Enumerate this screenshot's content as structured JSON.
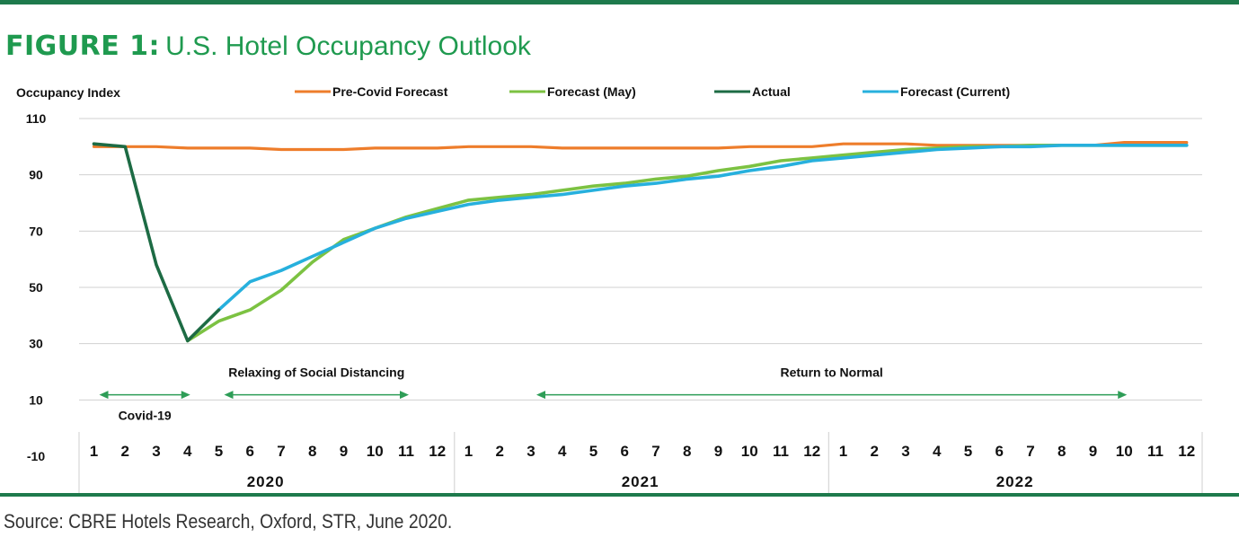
{
  "figure": {
    "label": "FIGURE 1:",
    "title": "U.S. Hotel Occupancy Outlook",
    "source": "Source: CBRE Hotels Research, Oxford, STR, June 2020."
  },
  "colors": {
    "pre_covid": "#ee7d2b",
    "forecast_may": "#7cc242",
    "actual": "#1d6b44",
    "forecast_current": "#27b0dd",
    "annotation": "#2e9d57",
    "rule": "#1e7a4c",
    "title": "#1f9a4f"
  },
  "chart_data": {
    "type": "line",
    "ylabel": "Occupancy Index",
    "ylim": [
      -10,
      110
    ],
    "yticks": [
      110,
      90,
      70,
      50,
      30,
      10,
      -10
    ],
    "grid": true,
    "x_month_labels": [
      "1",
      "2",
      "3",
      "4",
      "5",
      "6",
      "7",
      "8",
      "9",
      "10",
      "11",
      "12",
      "1",
      "2",
      "3",
      "4",
      "5",
      "6",
      "7",
      "8",
      "9",
      "10",
      "11",
      "12",
      "1",
      "2",
      "3",
      "4",
      "5",
      "6",
      "7",
      "8",
      "9",
      "10",
      "11",
      "12"
    ],
    "x_year_labels": [
      "2020",
      "2021",
      "2022"
    ],
    "legend_position": "top",
    "series": [
      {
        "name": "Pre-Covid Forecast",
        "start_index": 1,
        "values": [
          100,
          100,
          100,
          99.5,
          99.5,
          99.5,
          99,
          99,
          99,
          99.5,
          99.5,
          99.5,
          100,
          100,
          100,
          99.5,
          99.5,
          99.5,
          99.5,
          99.5,
          99.5,
          100,
          100,
          100,
          101,
          101,
          101,
          100.5,
          100.5,
          100.5,
          100.5,
          100.5,
          100.5,
          101.5,
          101.5,
          101.5
        ]
      },
      {
        "name": "Forecast (May)",
        "start_index": 4,
        "values": [
          31,
          38,
          42,
          49,
          59,
          67,
          71,
          75,
          78,
          81,
          82,
          83,
          84.5,
          86,
          87,
          88.5,
          89.5,
          91.5,
          93,
          95,
          96,
          97,
          98,
          99,
          99.5,
          100,
          100,
          100.5,
          100.5,
          100.5,
          100.5,
          100.5,
          100.5
        ]
      },
      {
        "name": "Actual",
        "start_index": 1,
        "values": [
          101,
          100,
          58,
          31,
          42
        ]
      },
      {
        "name": "Forecast (Current)",
        "start_index": 5,
        "values": [
          42,
          52,
          56,
          61,
          66,
          71,
          74.5,
          77,
          79.5,
          81,
          82,
          83,
          84.5,
          86,
          87,
          88.5,
          89.5,
          91.5,
          93,
          95,
          96,
          97,
          98,
          99,
          99.5,
          100,
          100,
          100.5,
          100.5,
          100.5,
          100.5,
          100.5
        ]
      }
    ],
    "annotations": [
      {
        "text": "Covid-19",
        "from_index": 1,
        "to_index": 4,
        "y": 12,
        "label_position": "below"
      },
      {
        "text": "Relaxing of Social Distancing",
        "from_index": 5,
        "to_index": 11,
        "y": 12,
        "label_position": "above"
      },
      {
        "text": "Return to Normal",
        "from_index": 15,
        "to_index": 34,
        "y": 12,
        "label_position": "above"
      }
    ]
  }
}
